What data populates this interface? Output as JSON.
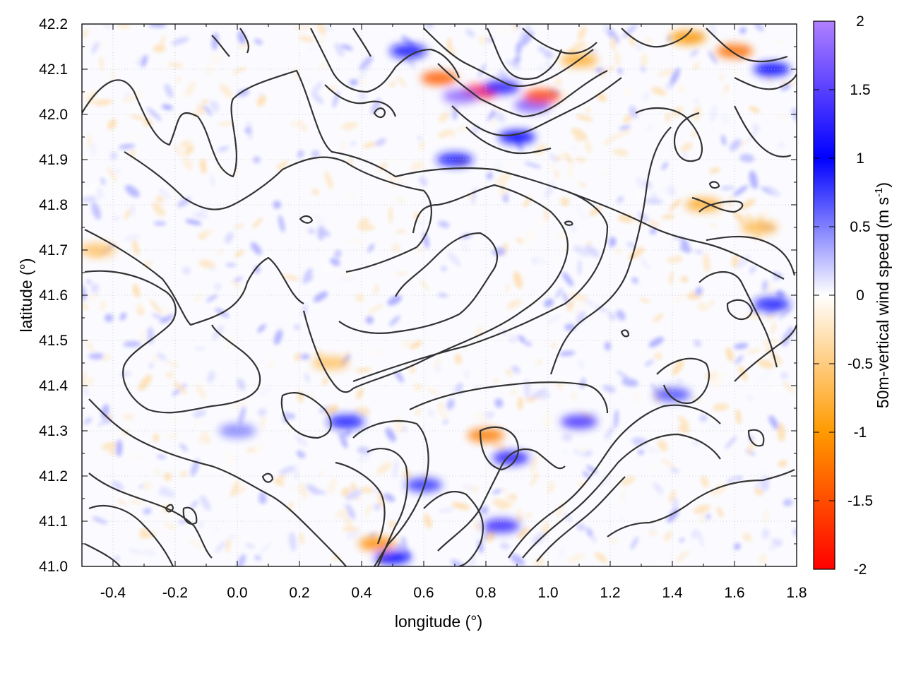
{
  "chart_data": {
    "type": "heatmap",
    "xlabel": "longitude (°)",
    "ylabel": "latitude (°)",
    "xlim": [
      -0.5,
      1.8
    ],
    "ylim": [
      41.0,
      42.2
    ],
    "x_ticks": [
      "-0.4",
      "-0.2",
      "0.0",
      "0.2",
      "0.4",
      "0.6",
      "0.8",
      "1.0",
      "1.2",
      "1.4",
      "1.6",
      "1.8"
    ],
    "x_tick_values": [
      -0.4,
      -0.2,
      0.0,
      0.2,
      0.4,
      0.6,
      0.8,
      1.0,
      1.2,
      1.4,
      1.6,
      1.8
    ],
    "y_ticks": [
      "41.0",
      "41.1",
      "41.2",
      "41.3",
      "41.4",
      "41.5",
      "41.6",
      "41.7",
      "41.8",
      "41.9",
      "42.0",
      "42.1",
      "42.2"
    ],
    "y_tick_values": [
      41.0,
      41.1,
      41.2,
      41.3,
      41.4,
      41.5,
      41.6,
      41.7,
      41.8,
      41.9,
      42.0,
      42.1,
      42.2
    ],
    "grid": true,
    "colorbar": {
      "label_main": "50m-vertical wind speed (m s",
      "label_sup": "-1",
      "label_end": ")",
      "range": [
        -2,
        2
      ],
      "ticks": [
        "2",
        "1.5",
        "1",
        "0.5",
        "0",
        "-0.5",
        "-1",
        "-1.5",
        "-2"
      ],
      "tick_values": [
        2,
        1.5,
        1,
        0.5,
        0,
        -0.5,
        -1,
        -1.5,
        -2
      ],
      "colors": {
        "neg_max": "#ff0000",
        "neg_mid": "#ff9a00",
        "zero": "#ffffff",
        "pos_mid": "#0000ff",
        "pos_max": "#b080ff"
      }
    },
    "features": [
      {
        "lon": 0.78,
        "lat": 42.05,
        "value": -1.9
      },
      {
        "lon": 0.72,
        "lat": 42.04,
        "value": 1.8
      },
      {
        "lon": 0.95,
        "lat": 42.02,
        "value": 1.7
      },
      {
        "lon": 0.98,
        "lat": 42.04,
        "value": -1.6
      },
      {
        "lon": 0.85,
        "lat": 42.06,
        "value": 1.2
      },
      {
        "lon": 0.65,
        "lat": 42.08,
        "value": -1.4
      },
      {
        "lon": 0.55,
        "lat": 42.14,
        "value": 1.1
      },
      {
        "lon": 1.45,
        "lat": 42.17,
        "value": -1.0
      },
      {
        "lon": 1.6,
        "lat": 42.14,
        "value": -1.3
      },
      {
        "lon": 1.72,
        "lat": 42.1,
        "value": 1.0
      },
      {
        "lon": 1.1,
        "lat": 42.12,
        "value": -0.8
      },
      {
        "lon": 0.9,
        "lat": 41.95,
        "value": 1.0
      },
      {
        "lon": 1.5,
        "lat": 41.8,
        "value": -0.8
      },
      {
        "lon": 1.68,
        "lat": 41.75,
        "value": -0.7
      },
      {
        "lon": 1.72,
        "lat": 41.58,
        "value": 0.9
      },
      {
        "lon": 0.8,
        "lat": 41.29,
        "value": -1.2
      },
      {
        "lon": 0.88,
        "lat": 41.24,
        "value": 1.2
      },
      {
        "lon": 1.1,
        "lat": 41.32,
        "value": 1.4
      },
      {
        "lon": 0.85,
        "lat": 41.09,
        "value": 1.3
      },
      {
        "lon": 0.45,
        "lat": 41.05,
        "value": -1.1
      },
      {
        "lon": 0.5,
        "lat": 41.02,
        "value": 1.0
      },
      {
        "lon": 0.35,
        "lat": 41.32,
        "value": 0.9
      },
      {
        "lon": 0.6,
        "lat": 41.18,
        "value": 0.8
      },
      {
        "lon": 0.3,
        "lat": 41.45,
        "value": -0.6
      },
      {
        "lon": 1.4,
        "lat": 41.38,
        "value": 0.7
      },
      {
        "lon": -0.45,
        "lat": 41.7,
        "value": -0.6
      },
      {
        "lon": 0.0,
        "lat": 41.3,
        "value": 0.5
      },
      {
        "lon": 0.7,
        "lat": 41.9,
        "value": 0.9
      }
    ]
  }
}
